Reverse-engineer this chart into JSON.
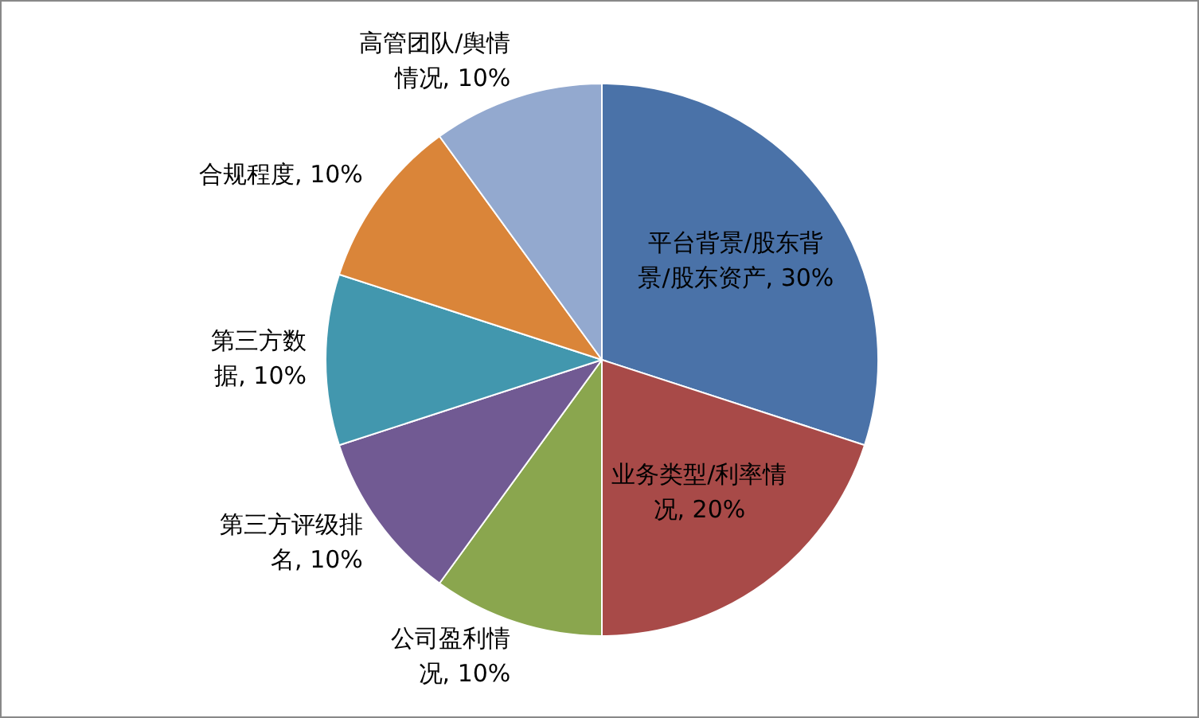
{
  "chart_data": {
    "type": "pie",
    "categories": [
      "平台背景/股东背景/股东资产",
      "业务类型/利率情况",
      "公司盈利情况",
      "第三方评级排名",
      "第三方数据",
      "合规程度",
      "高管团队/舆情情况"
    ],
    "values": [
      30,
      20,
      10,
      10,
      10,
      10,
      10
    ],
    "value_labels": [
      "30%",
      "20%",
      "10%",
      "10%",
      "10%",
      "10%",
      "10%"
    ],
    "colors": [
      "#4a72a8",
      "#a84a48",
      "#8aa64e",
      "#715a93",
      "#4297ae",
      "#da8539",
      "#93a9cf"
    ],
    "legend": false
  }
}
